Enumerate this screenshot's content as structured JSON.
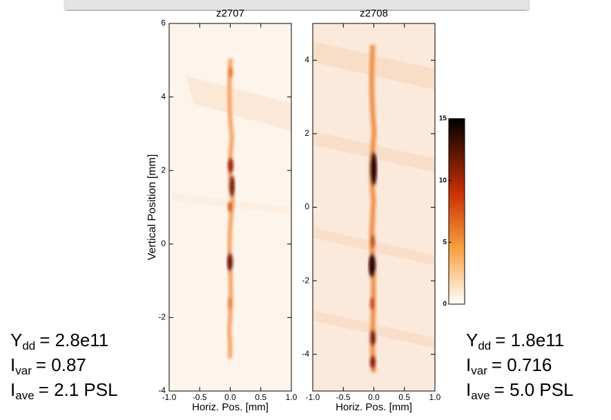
{
  "chart_data": [
    {
      "type": "image",
      "title": "z2707",
      "x_label": "Horiz. Pos. [mm]",
      "y_label": "Vertical Position [mm]",
      "xlim": [
        -1,
        1
      ],
      "xticks": [
        {
          "value": -1,
          "label": "-1.0"
        },
        {
          "value": -0.5,
          "label": "-0.5"
        },
        {
          "value": 0,
          "label": "0.0"
        },
        {
          "value": 0.5,
          "label": "0.5"
        },
        {
          "value": 1,
          "label": "1.0"
        }
      ],
      "ylim": [
        -4,
        6
      ],
      "yticks": [
        -4,
        -2,
        0,
        2,
        4,
        6
      ]
    },
    {
      "type": "image",
      "title": "z2708",
      "x_label": "Horiz. Pos. [mm]",
      "xlim": [
        -1,
        1
      ],
      "xticks": [
        {
          "value": -1,
          "label": "-1.0"
        },
        {
          "value": -0.5,
          "label": "-0.5"
        },
        {
          "value": 0,
          "label": "0.0"
        },
        {
          "value": 0.5,
          "label": "0.5"
        },
        {
          "value": 1,
          "label": "1.0"
        }
      ],
      "ylim": [
        -5,
        5
      ],
      "yticks": [
        -4,
        -2,
        0,
        2,
        4
      ]
    },
    {
      "type": "colorbar",
      "ylim": [
        0,
        15
      ],
      "yticks": [
        0,
        5,
        10,
        15
      ]
    }
  ],
  "annotations": [
    [
      {
        "main": "Y",
        "sub": "dd",
        "rest": "= 2.8e11"
      },
      {
        "main": "I",
        "sub": "var",
        "rest": "= 0.87"
      },
      {
        "main": "I",
        "sub": "ave",
        "rest": "= 2.1 PSL"
      }
    ],
    [
      {
        "main": "Y",
        "sub": "dd",
        "rest": "= 1.8e11"
      },
      {
        "main": "I",
        "sub": "var",
        "rest": "= 0.716"
      },
      {
        "main": "I",
        "sub": "ave",
        "rest": "= 5.0 PSL"
      }
    ]
  ]
}
